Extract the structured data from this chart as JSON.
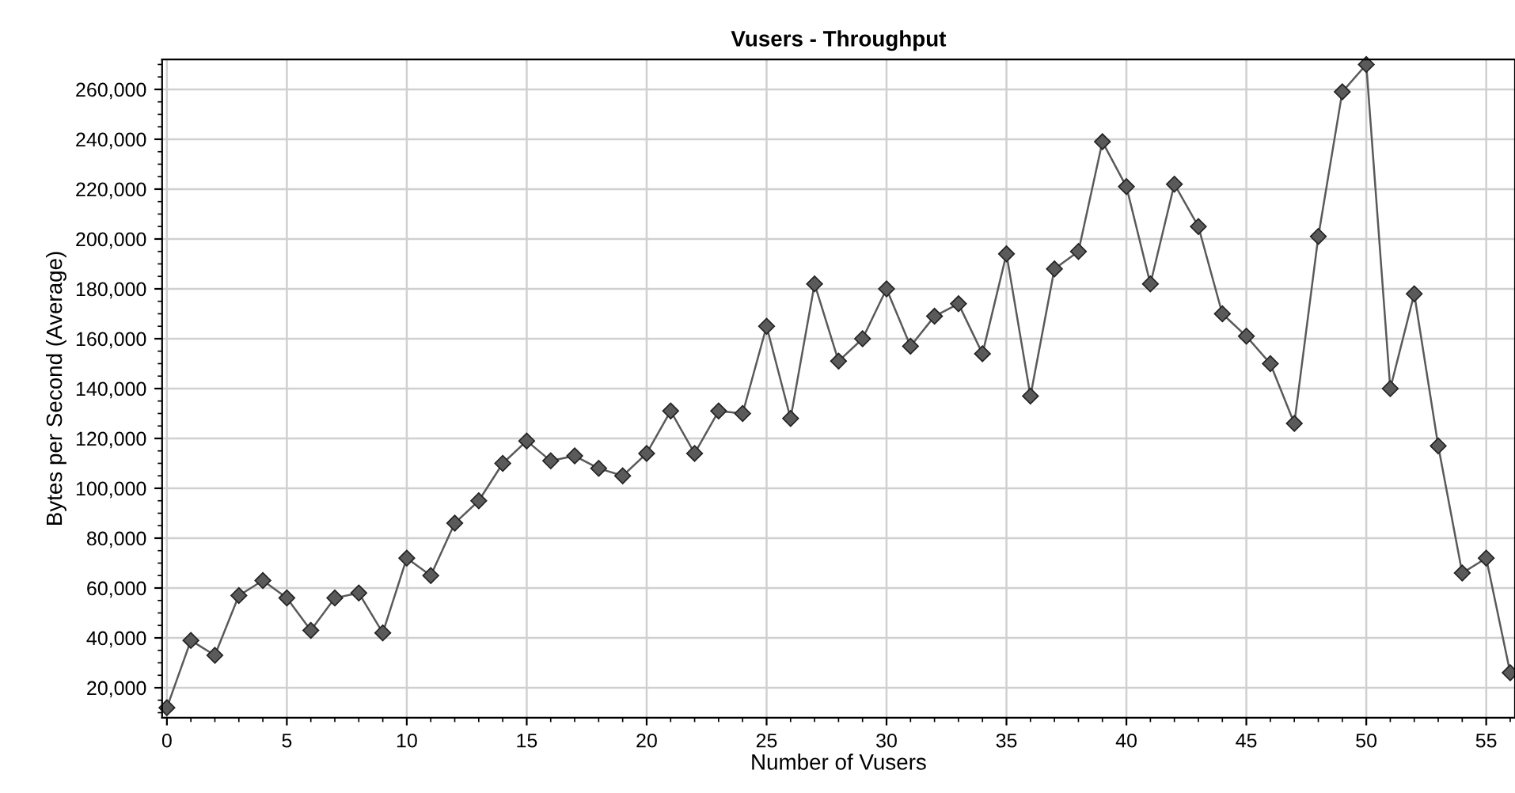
{
  "chart_data": {
    "type": "line",
    "title": "Vusers - Throughput",
    "xlabel": "Number of Vusers",
    "ylabel": "Bytes per Second (Average)",
    "x": [
      0,
      1,
      2,
      3,
      4,
      5,
      6,
      7,
      8,
      9,
      10,
      11,
      12,
      13,
      14,
      15,
      16,
      17,
      18,
      19,
      20,
      21,
      22,
      23,
      24,
      25,
      26,
      27,
      28,
      29,
      30,
      31,
      32,
      33,
      34,
      35,
      36,
      37,
      38,
      39,
      40,
      41,
      42,
      43,
      44,
      45,
      46,
      47,
      48,
      49,
      50,
      51,
      52,
      53,
      54,
      55,
      56
    ],
    "series": [
      {
        "color": "#5a5a5a",
        "values": [
          12000,
          39000,
          33000,
          57000,
          63000,
          56000,
          43000,
          56000,
          58000,
          42000,
          72000,
          65000,
          86000,
          95000,
          110000,
          119000,
          111000,
          113000,
          108000,
          105000,
          114000,
          131000,
          114000,
          131000,
          130000,
          165000,
          128000,
          182000,
          151000,
          160000,
          180000,
          157000,
          169000,
          174000,
          154000,
          194000,
          137000,
          188000,
          195000,
          239000,
          221000,
          182000,
          222000,
          205000,
          170000,
          161000,
          150000,
          126000,
          201000,
          259000,
          270000,
          140000,
          178000,
          117000,
          66000,
          72000,
          26000
        ]
      }
    ],
    "xlim": [
      -0.2,
      56.2
    ],
    "xticks": [
      0,
      5,
      10,
      15,
      20,
      25,
      30,
      35,
      40,
      45,
      50,
      55
    ],
    "ylim": [
      8000,
      272000
    ],
    "yticks": [
      {
        "value": 20000,
        "label": "20,000"
      },
      {
        "value": 40000,
        "label": "40,000"
      },
      {
        "value": 60000,
        "label": "60,000"
      },
      {
        "value": 80000,
        "label": "80,000"
      },
      {
        "value": 100000,
        "label": "100,000"
      },
      {
        "value": 120000,
        "label": "120,000"
      },
      {
        "value": 140000,
        "label": "140,000"
      },
      {
        "value": 160000,
        "label": "160,000"
      },
      {
        "value": 180000,
        "label": "180,000"
      },
      {
        "value": 200000,
        "label": "200,000"
      },
      {
        "value": 220000,
        "label": "220,000"
      },
      {
        "value": 240000,
        "label": "240,000"
      },
      {
        "value": 260000,
        "label": "260,000"
      }
    ],
    "grid": true,
    "marker": "diamond",
    "line_style": "solid"
  }
}
